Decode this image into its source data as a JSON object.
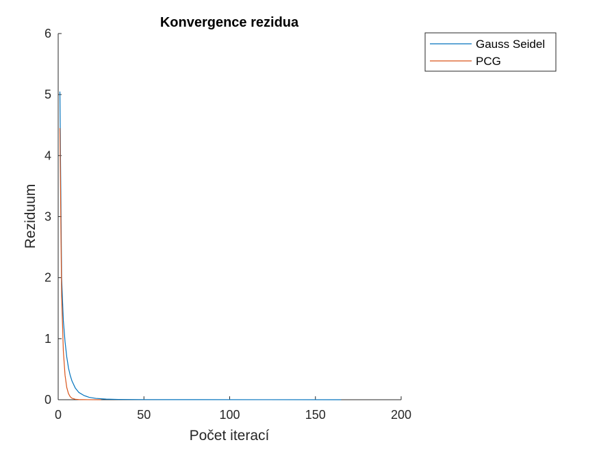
{
  "chart_data": {
    "type": "line",
    "title": "Konvergence rezidua",
    "xlabel": "Počet iterací",
    "ylabel": "Reziduum",
    "xlim": [
      0,
      200
    ],
    "ylim": [
      0,
      6
    ],
    "xticks": [
      0,
      50,
      100,
      150,
      200
    ],
    "yticks": [
      0,
      1,
      2,
      3,
      4,
      5,
      6
    ],
    "grid": false,
    "legend_location": "outside-top-right",
    "series": [
      {
        "name": "Gauss Seidel",
        "color": "#0072BD",
        "x": [
          1,
          2,
          3,
          4,
          5,
          6,
          7,
          8,
          10,
          12,
          15,
          18,
          22,
          28,
          35,
          50,
          80,
          120,
          165
        ],
        "y": [
          5.05,
          2.0,
          1.3,
          0.95,
          0.7,
          0.52,
          0.4,
          0.31,
          0.19,
          0.12,
          0.07,
          0.04,
          0.022,
          0.01,
          0.005,
          0.002,
          0.001,
          0.0005,
          0.0002
        ]
      },
      {
        "name": "PCG",
        "color": "#D95319",
        "x": [
          1,
          2,
          3,
          4,
          5,
          6,
          7,
          8,
          10,
          12,
          15,
          25
        ],
        "y": [
          4.45,
          1.7,
          0.8,
          0.4,
          0.2,
          0.1,
          0.05,
          0.025,
          0.008,
          0.003,
          0.001,
          0.0002
        ]
      }
    ]
  }
}
